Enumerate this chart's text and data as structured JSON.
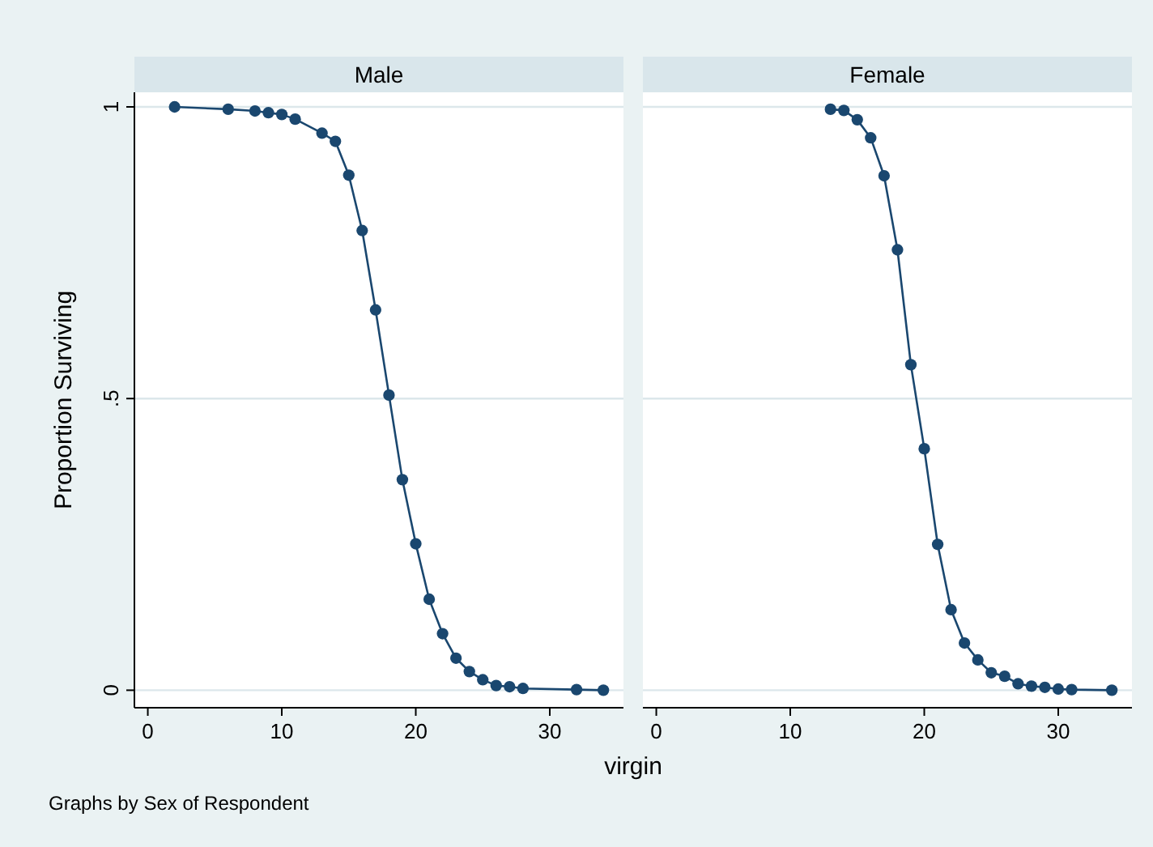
{
  "chart_data": [
    {
      "type": "line",
      "title": "Male",
      "xlabel": "virgin",
      "ylabel": "Proportion Surviving",
      "annotations": [
        "Graphs by Sex of Respondent"
      ],
      "marker": "circle",
      "grid": "y",
      "x": [
        2,
        6,
        8,
        9,
        10,
        11,
        13,
        14,
        15,
        16,
        17,
        18,
        19,
        20,
        21,
        22,
        23,
        24,
        25,
        26,
        27,
        28,
        32,
        34
      ],
      "series": [
        {
          "color": "#1a476f",
          "values": [
            1.0,
            0.996,
            0.993,
            0.99,
            0.987,
            0.979,
            0.955,
            0.941,
            0.883,
            0.788,
            0.652,
            0.506,
            0.361,
            0.251,
            0.156,
            0.097,
            0.055,
            0.032,
            0.018,
            0.008,
            0.006,
            0.003,
            0.001,
            0
          ]
        }
      ],
      "xlim": [
        -1,
        35.5
      ],
      "ylim": [
        -0.03,
        1.025
      ],
      "xticks": [
        0,
        10,
        20,
        30
      ],
      "yticks": [
        0,
        {
          "value": 0.5,
          "label": ".5"
        },
        1
      ]
    },
    {
      "type": "line",
      "title": "Female",
      "marker": "circle",
      "grid": "y",
      "tick_labels": "x",
      "x": [
        13,
        14,
        15,
        16,
        17,
        18,
        19,
        20,
        21,
        22,
        23,
        24,
        25,
        26,
        27,
        28,
        29,
        30,
        31,
        34
      ],
      "series": [
        {
          "color": "#1a476f",
          "values": [
            0.996,
            0.994,
            0.978,
            0.947,
            0.882,
            0.755,
            0.558,
            0.414,
            0.25,
            0.138,
            0.081,
            0.052,
            0.03,
            0.024,
            0.011,
            0.007,
            0.005,
            0.002,
            0.001,
            0
          ]
        }
      ],
      "xlim": [
        -1,
        35.5
      ],
      "ylim": [
        -0.03,
        1.025
      ],
      "xticks": [
        0,
        10,
        20,
        30
      ],
      "yticks": [
        0,
        0.5,
        1
      ]
    }
  ]
}
